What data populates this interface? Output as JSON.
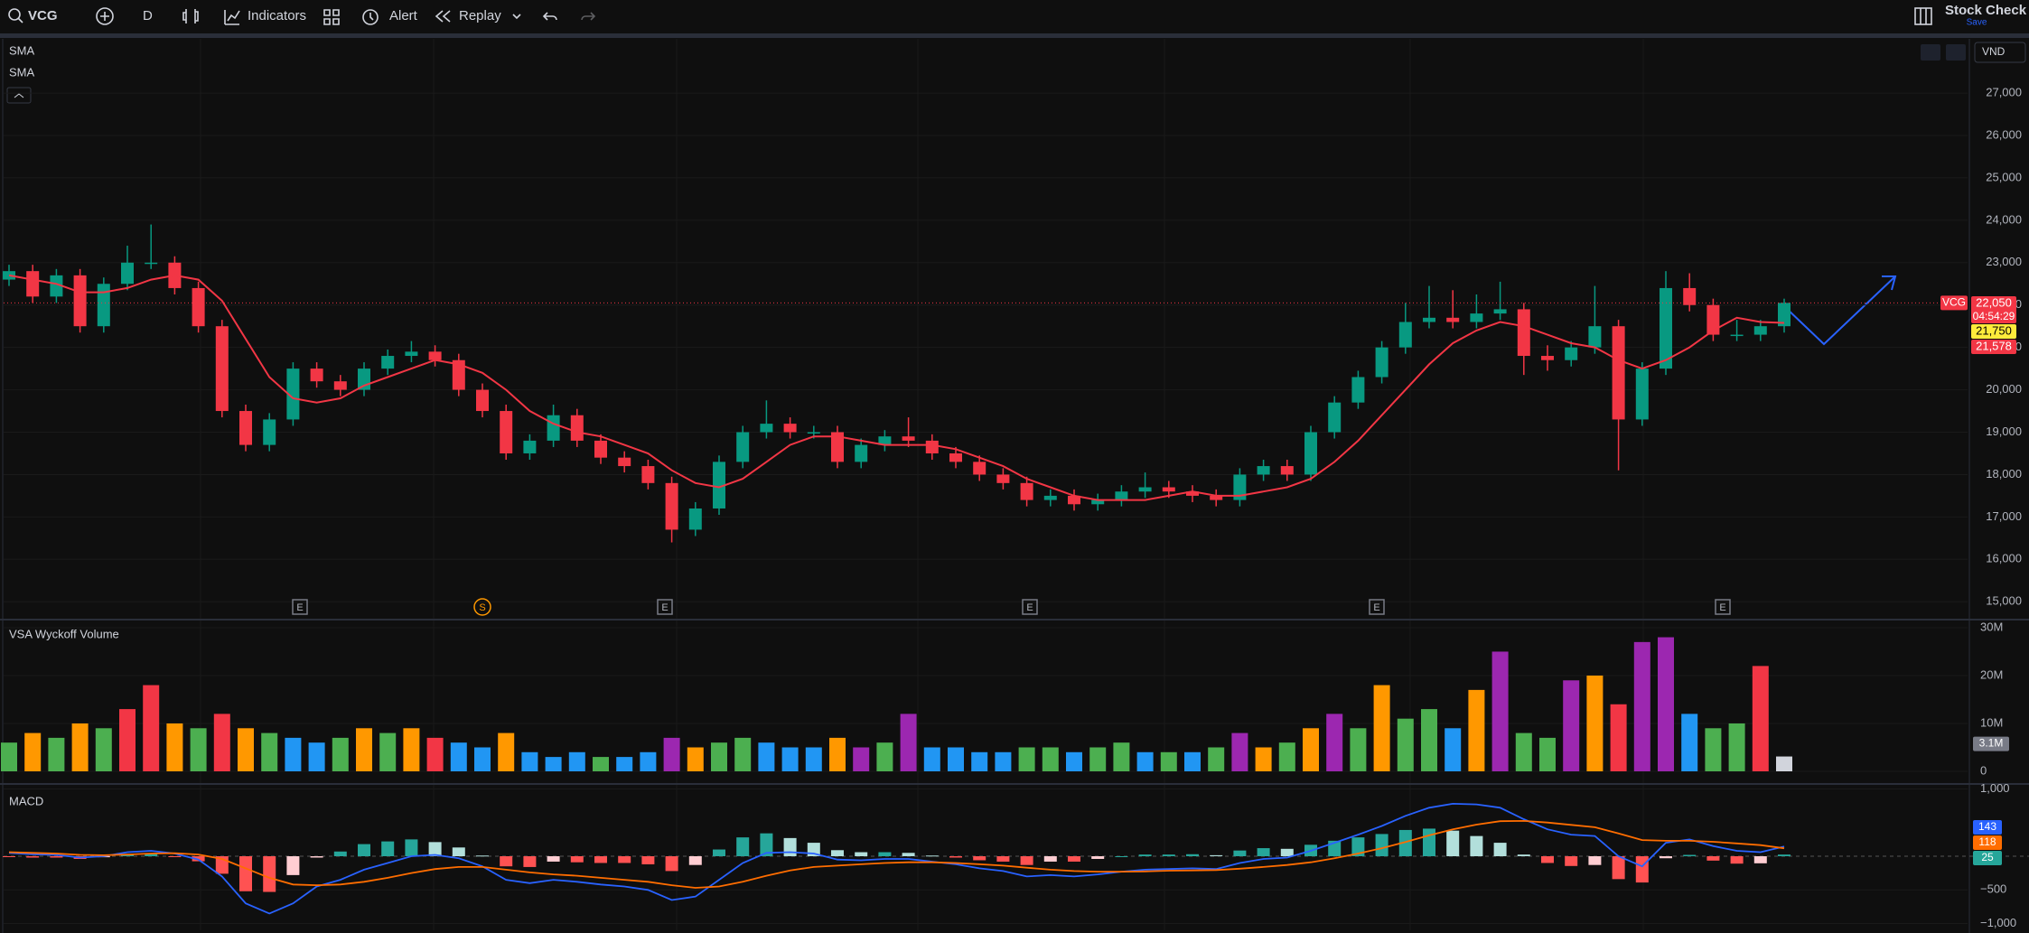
{
  "toolbar": {
    "symbol": "VCG",
    "interval": "D",
    "indicators": "Indicators",
    "alert": "Alert",
    "replay": "Replay",
    "layout_name": "Stock Check",
    "save": "Save"
  },
  "currency": "VND",
  "price_pane": {
    "labels": [
      "SMA",
      "SMA"
    ],
    "ylim": [
      14600,
      28280
    ],
    "yticks": [
      {
        "value": 15000,
        "label": "15,000"
      },
      {
        "value": 16000,
        "label": "16,000"
      },
      {
        "value": 17000,
        "label": "17,000"
      },
      {
        "value": 18000,
        "label": "18,000"
      },
      {
        "value": 19000,
        "label": "19,000"
      },
      {
        "value": 20000,
        "label": "20,000"
      },
      {
        "value": 21000,
        "label": "21,000"
      },
      {
        "value": 22000,
        "label": "22,000"
      },
      {
        "value": 23000,
        "label": "23,000"
      },
      {
        "value": 24000,
        "label": "24,000"
      },
      {
        "value": 25000,
        "label": "25,000"
      },
      {
        "value": 26000,
        "label": "26,000"
      },
      {
        "value": 27000,
        "label": "27,000"
      }
    ],
    "up_color": "#089981",
    "down_color": "#f23645",
    "candles": [
      [
        22600,
        22950,
        22450,
        22800
      ],
      [
        22800,
        22950,
        22050,
        22200
      ],
      [
        22200,
        22850,
        22050,
        22700
      ],
      [
        22700,
        22850,
        21350,
        21500
      ],
      [
        21500,
        22650,
        21350,
        22500
      ],
      [
        22500,
        23400,
        22350,
        23000
      ],
      [
        23000,
        23900,
        22850,
        23000
      ],
      [
        23000,
        23150,
        22250,
        22400
      ],
      [
        22400,
        22550,
        21350,
        21500
      ],
      [
        21500,
        21650,
        19350,
        19500
      ],
      [
        19500,
        19650,
        18550,
        18700
      ],
      [
        18700,
        19450,
        18550,
        19300
      ],
      [
        19300,
        20650,
        19150,
        20500
      ],
      [
        20500,
        20650,
        20050,
        20200
      ],
      [
        20200,
        20350,
        19850,
        20000
      ],
      [
        20000,
        20650,
        19850,
        20500
      ],
      [
        20500,
        20950,
        20350,
        20800
      ],
      [
        20800,
        21150,
        20650,
        20900
      ],
      [
        20900,
        21050,
        20550,
        20700
      ],
      [
        20700,
        20850,
        19850,
        20000
      ],
      [
        20000,
        20150,
        19350,
        19500
      ],
      [
        19500,
        19650,
        18350,
        18500
      ],
      [
        18500,
        18950,
        18350,
        18800
      ],
      [
        18800,
        19650,
        18650,
        19400
      ],
      [
        19400,
        19550,
        18650,
        18800
      ],
      [
        18800,
        18950,
        18250,
        18400
      ],
      [
        18400,
        18550,
        18050,
        18200
      ],
      [
        18200,
        18350,
        17650,
        17800
      ],
      [
        17800,
        17950,
        16400,
        16700
      ],
      [
        16700,
        17350,
        16550,
        17200
      ],
      [
        17200,
        18450,
        17050,
        18300
      ],
      [
        18300,
        19150,
        18150,
        19000
      ],
      [
        19000,
        19750,
        18850,
        19200
      ],
      [
        19200,
        19350,
        18850,
        19000
      ],
      [
        19000,
        19150,
        18850,
        19000
      ],
      [
        19000,
        19150,
        18150,
        18300
      ],
      [
        18300,
        18850,
        18150,
        18700
      ],
      [
        18700,
        19050,
        18550,
        18900
      ],
      [
        18900,
        19350,
        18650,
        18800
      ],
      [
        18800,
        18950,
        18350,
        18500
      ],
      [
        18500,
        18650,
        18150,
        18300
      ],
      [
        18300,
        18450,
        17850,
        18000
      ],
      [
        18000,
        18150,
        17650,
        17800
      ],
      [
        17800,
        17950,
        17250,
        17400
      ],
      [
        17400,
        17650,
        17250,
        17500
      ],
      [
        17500,
        17650,
        17150,
        17300
      ],
      [
        17300,
        17550,
        17150,
        17400
      ],
      [
        17400,
        17750,
        17250,
        17600
      ],
      [
        17600,
        18050,
        17450,
        17700
      ],
      [
        17700,
        17850,
        17450,
        17600
      ],
      [
        17600,
        17750,
        17350,
        17500
      ],
      [
        17500,
        17650,
        17250,
        17400
      ],
      [
        17400,
        18150,
        17250,
        18000
      ],
      [
        18000,
        18350,
        17850,
        18200
      ],
      [
        18200,
        18350,
        17850,
        18000
      ],
      [
        18000,
        19150,
        17850,
        19000
      ],
      [
        19000,
        19850,
        18850,
        19700
      ],
      [
        19700,
        20450,
        19550,
        20300
      ],
      [
        20300,
        21150,
        20150,
        21000
      ],
      [
        21000,
        22050,
        20850,
        21600
      ],
      [
        21600,
        22450,
        21450,
        21700
      ],
      [
        21700,
        22350,
        21450,
        21600
      ],
      [
        21600,
        22250,
        21450,
        21800
      ],
      [
        21800,
        22550,
        21650,
        21900
      ],
      [
        21900,
        22050,
        20350,
        20800
      ],
      [
        20800,
        21050,
        20450,
        20700
      ],
      [
        20700,
        21150,
        20550,
        21000
      ],
      [
        21000,
        22450,
        20850,
        21500
      ],
      [
        21500,
        21650,
        18100,
        19300
      ],
      [
        19300,
        20650,
        19150,
        20500
      ],
      [
        20500,
        22800,
        20350,
        22400
      ],
      [
        22400,
        22750,
        21850,
        22000
      ],
      [
        22000,
        22150,
        21150,
        21300
      ],
      [
        21300,
        21650,
        21150,
        21300
      ],
      [
        21300,
        21650,
        21150,
        21500
      ],
      [
        21500,
        22150,
        21350,
        22050
      ]
    ],
    "sma": {
      "color": "#f23645",
      "values": [
        22700,
        22600,
        22500,
        22300,
        22300,
        22400,
        22600,
        22700,
        22600,
        22100,
        21200,
        20300,
        19800,
        19700,
        19800,
        20100,
        20300,
        20500,
        20700,
        20600,
        20400,
        20000,
        19500,
        19200,
        19000,
        18900,
        18700,
        18500,
        18100,
        17800,
        17700,
        17900,
        18300,
        18700,
        18900,
        18900,
        18800,
        18700,
        18700,
        18700,
        18600,
        18400,
        18200,
        17900,
        17700,
        17500,
        17400,
        17400,
        17400,
        17500,
        17600,
        17500,
        17500,
        17600,
        17700,
        17900,
        18300,
        18800,
        19400,
        20000,
        20600,
        21100,
        21400,
        21600,
        21500,
        21300,
        21100,
        21000,
        20700,
        20500,
        20700,
        21000,
        21400,
        21700,
        21600,
        21578
      ]
    },
    "price_tags": [
      {
        "value": 22050,
        "label": "22,050",
        "color": "#f23645",
        "text_color": "#ffffff"
      },
      {
        "value": 21750,
        "label": "21,750",
        "color": "#ffeb3b",
        "text_color": "#000000"
      },
      {
        "value": 21578,
        "label": "21,578",
        "color": "#f23645",
        "text_color": "#ffffff"
      }
    ],
    "countdown": "04:54:29",
    "events": [
      "E",
      "S",
      "E",
      "E",
      "E",
      "E"
    ]
  },
  "volume_pane": {
    "title": "VSA Wyckoff Volume",
    "ylim": [
      0,
      31500000
    ],
    "yticks": [
      0,
      {
        "value": 10000000,
        "label": "10M"
      },
      {
        "value": 20000000,
        "label": "20M"
      },
      {
        "value": 30000000,
        "label": "30M"
      }
    ],
    "values": [
      6000000,
      8000000,
      7000000,
      10000000,
      9000000,
      13000000,
      18000000,
      10000000,
      9000000,
      12000000,
      9000000,
      8000000,
      7000000,
      6000000,
      7000000,
      9000000,
      8000000,
      9000000,
      7000000,
      6000000,
      5000000,
      8000000,
      4000000,
      3000000,
      4000000,
      3000000,
      3000000,
      4000000,
      7000000,
      5000000,
      6000000,
      7000000,
      6000000,
      5000000,
      5000000,
      7000000,
      5000000,
      6000000,
      12000000,
      5000000,
      5000000,
      4000000,
      4000000,
      5000000,
      5000000,
      4000000,
      5000000,
      6000000,
      4000000,
      4000000,
      4000000,
      5000000,
      8000000,
      5000000,
      6000000,
      9000000,
      12000000,
      9000000,
      18000000,
      11000000,
      13000000,
      9000000,
      17000000,
      25000000,
      8000000,
      7000000,
      19000000,
      20000000,
      14000000,
      27000000,
      28000000,
      12000000,
      9000000,
      10000000,
      22000000,
      3100000
    ],
    "colors": [
      "#4caf50",
      "#ff9800",
      "#4caf50",
      "#ff9800",
      "#4caf50",
      "#f23645",
      "#f23645",
      "#ff9800",
      "#4caf50",
      "#f23645",
      "#ff9800",
      "#4caf50",
      "#2196f3",
      "#2196f3",
      "#4caf50",
      "#ff9800",
      "#4caf50",
      "#ff9800",
      "#f23645",
      "#2196f3",
      "#2196f3",
      "#ff9800",
      "#2196f3",
      "#2196f3",
      "#2196f3",
      "#4caf50",
      "#2196f3",
      "#2196f3",
      "#9c27b0",
      "#ff9800",
      "#4caf50",
      "#4caf50",
      "#2196f3",
      "#2196f3",
      "#2196f3",
      "#ff9800",
      "#9c27b0",
      "#4caf50",
      "#9c27b0",
      "#2196f3",
      "#2196f3",
      "#2196f3",
      "#2196f3",
      "#4caf50",
      "#4caf50",
      "#2196f3",
      "#4caf50",
      "#4caf50",
      "#2196f3",
      "#4caf50",
      "#2196f3",
      "#4caf50",
      "#9c27b0",
      "#ff9800",
      "#4caf50",
      "#ff9800",
      "#9c27b0",
      "#4caf50",
      "#ff9800",
      "#4caf50",
      "#4caf50",
      "#2196f3",
      "#ff9800",
      "#9c27b0",
      "#4caf50",
      "#4caf50",
      "#9c27b0",
      "#ff9800",
      "#f23645",
      "#9c27b0",
      "#9c27b0",
      "#2196f3",
      "#4caf50",
      "#4caf50",
      "#f23645",
      "#d1d4dc"
    ],
    "last_label": "3.1M"
  },
  "macd_pane": {
    "title": "MACD",
    "ylim": [
      -1100,
      1033
    ],
    "yticks": [
      {
        "value": 1000,
        "label": "1,000"
      },
      {
        "value": -500,
        "label": "−500"
      },
      {
        "value": -1000,
        "label": "−1,000"
      }
    ],
    "macd": {
      "color": "#2962ff",
      "values": [
        50,
        30,
        20,
        -20,
        0,
        60,
        80,
        40,
        -50,
        -300,
        -700,
        -850,
        -700,
        -450,
        -350,
        -200,
        -100,
        0,
        20,
        -30,
        -150,
        -350,
        -400,
        -350,
        -380,
        -420,
        -450,
        -500,
        -650,
        -600,
        -350,
        -100,
        50,
        60,
        40,
        -50,
        -60,
        -40,
        -40,
        -80,
        -120,
        -180,
        -220,
        -300,
        -280,
        -300,
        -270,
        -230,
        -200,
        -190,
        -180,
        -190,
        -100,
        -40,
        -20,
        80,
        200,
        320,
        450,
        600,
        720,
        780,
        770,
        720,
        550,
        400,
        320,
        300,
        0,
        -150,
        200,
        250,
        150,
        80,
        60,
        143
      ]
    },
    "signal": {
      "color": "#ff6d00",
      "values": [
        60,
        50,
        40,
        20,
        15,
        25,
        40,
        45,
        25,
        -40,
        -180,
        -320,
        -420,
        -430,
        -420,
        -380,
        -320,
        -250,
        -190,
        -160,
        -160,
        -200,
        -240,
        -270,
        -290,
        -320,
        -350,
        -380,
        -430,
        -470,
        -450,
        -380,
        -290,
        -210,
        -160,
        -140,
        -120,
        -100,
        -90,
        -90,
        -100,
        -120,
        -140,
        -170,
        -200,
        -220,
        -230,
        -230,
        -225,
        -215,
        -210,
        -205,
        -185,
        -160,
        -130,
        -90,
        -30,
        40,
        120,
        210,
        310,
        400,
        470,
        520,
        525,
        500,
        465,
        430,
        340,
        240,
        230,
        230,
        215,
        190,
        165,
        118
      ]
    },
    "histogram": {
      "values": [
        -10,
        -20,
        -20,
        -40,
        -15,
        35,
        40,
        -5,
        -75,
        -260,
        -520,
        -530,
        -280,
        -20,
        70,
        180,
        220,
        250,
        210,
        130,
        10,
        -150,
        -160,
        -80,
        -90,
        -100,
        -100,
        -120,
        -220,
        -130,
        100,
        280,
        340,
        270,
        200,
        90,
        60,
        60,
        50,
        10,
        -20,
        -60,
        -80,
        -130,
        -80,
        -80,
        -40,
        0,
        25,
        25,
        30,
        15,
        85,
        120,
        110,
        170,
        230,
        280,
        330,
        390,
        410,
        380,
        300,
        200,
        25,
        -100,
        -145,
        -130,
        -340,
        -390,
        -30,
        20,
        -65,
        -110,
        -105,
        25
      ],
      "colors": [
        "#26a69a",
        "#b2dfdb",
        "#ffcdd2",
        "#ff5252"
      ],
      "tag_color": "#26a69a"
    }
  }
}
